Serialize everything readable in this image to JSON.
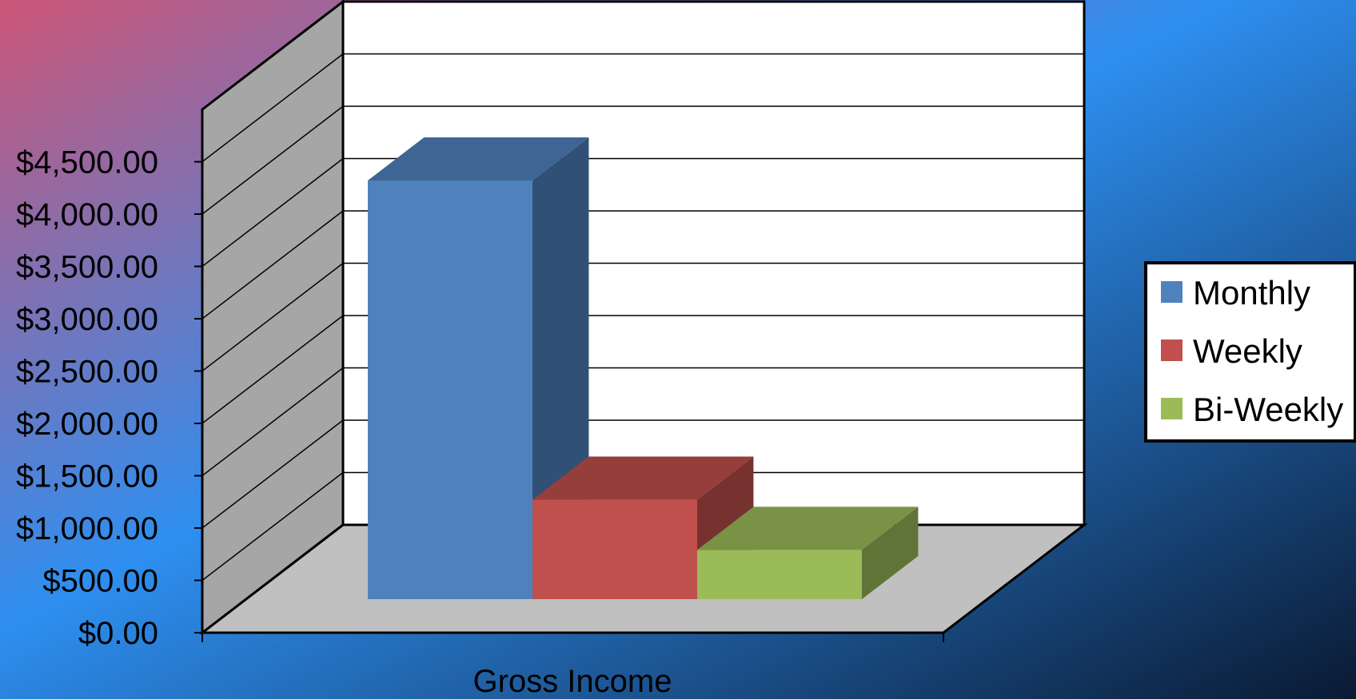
{
  "chart_data": {
    "type": "bar",
    "style": "3d-clustered-column",
    "categories": [
      "Gross Income"
    ],
    "series": [
      {
        "name": "Monthly",
        "values": [
          4000
        ],
        "color": "#4F81BD"
      },
      {
        "name": "Weekly",
        "values": [
          950
        ],
        "color": "#C0504D"
      },
      {
        "name": "Bi-Weekly",
        "values": [
          470
        ],
        "color": "#9BBB59"
      }
    ],
    "ylim": [
      0,
      5000
    ],
    "yticks": [
      0,
      500,
      1000,
      1500,
      2000,
      2500,
      3000,
      3500,
      4000,
      4500
    ],
    "ytick_labels": [
      "$0.00",
      "$500.00",
      "$1,000.00",
      "$1,500.00",
      "$2,000.00",
      "$2,500.00",
      "$3,000.00",
      "$3,500.00",
      "$4,000.00",
      "$4,500.00"
    ],
    "xlabel": "",
    "ylabel": "",
    "grid": true,
    "legend_position": "right",
    "background_colors": [
      "#CC5577",
      "#2E8FF0",
      "#0A1A33"
    ],
    "floor_color": "#C0C0C0",
    "side_wall_color": "#A6A6A6",
    "back_wall_color": "#FFFFFF"
  }
}
